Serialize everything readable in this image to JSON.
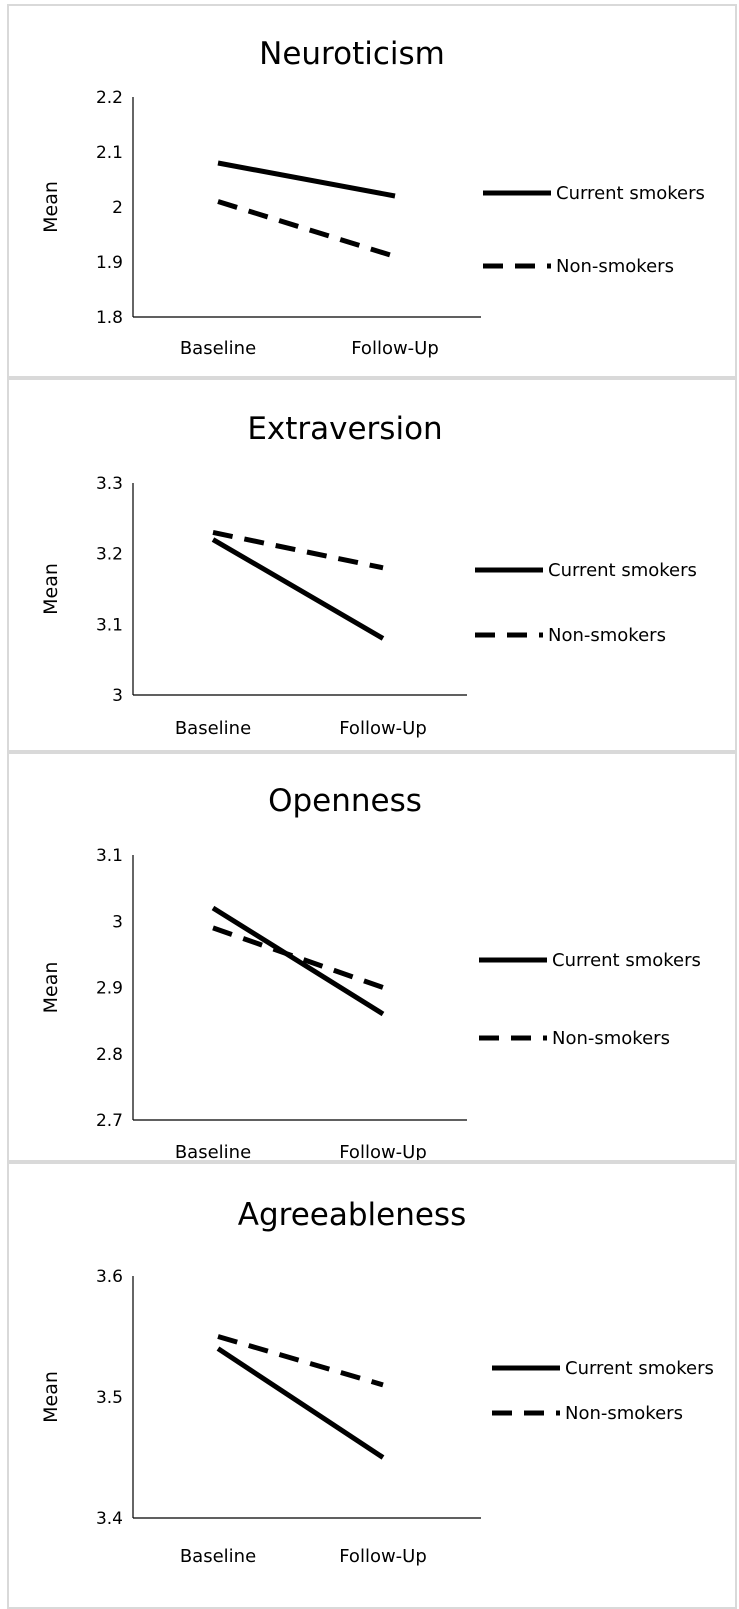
{
  "chart_data": [
    {
      "type": "line",
      "title": "Neuroticism",
      "ylabel": "Mean",
      "categories": [
        "Baseline",
        "Follow-Up"
      ],
      "ylim": [
        1.8,
        2.2
      ],
      "yticks": [
        "1.8",
        "1.9",
        "2",
        "2.1",
        "2.2"
      ],
      "series": [
        {
          "name": "Current smokers",
          "style": "solid",
          "values": [
            2.08,
            2.02
          ]
        },
        {
          "name": "Non-smokers",
          "style": "dashed",
          "values": [
            2.01,
            1.91
          ]
        }
      ],
      "legend_position": "right",
      "grid": false
    },
    {
      "type": "line",
      "title": "Extraversion",
      "ylabel": "Mean",
      "categories": [
        "Baseline",
        "Follow-Up"
      ],
      "ylim": [
        3.0,
        3.3
      ],
      "yticks": [
        "3",
        "3.1",
        "3.2",
        "3.3"
      ],
      "series": [
        {
          "name": "Current smokers",
          "style": "solid",
          "values": [
            3.22,
            3.08
          ]
        },
        {
          "name": "Non-smokers",
          "style": "dashed",
          "values": [
            3.23,
            3.18
          ]
        }
      ],
      "legend_position": "right",
      "grid": false
    },
    {
      "type": "line",
      "title": "Openness",
      "ylabel": "Mean",
      "categories": [
        "Baseline",
        "Follow-Up"
      ],
      "ylim": [
        2.7,
        3.1
      ],
      "yticks": [
        "2.7",
        "2.8",
        "2.9",
        "3",
        "3.1"
      ],
      "series": [
        {
          "name": "Current smokers",
          "style": "solid",
          "values": [
            3.02,
            2.86
          ]
        },
        {
          "name": "Non-smokers",
          "style": "dashed",
          "values": [
            2.99,
            2.9
          ]
        }
      ],
      "legend_position": "right",
      "grid": false
    },
    {
      "type": "line",
      "title": "Agreeableness",
      "ylabel": "Mean",
      "categories": [
        "Baseline",
        "Follow-Up"
      ],
      "ylim": [
        3.4,
        3.6
      ],
      "yticks": [
        "3.4",
        "3.5",
        "3.6"
      ],
      "series": [
        {
          "name": "Current smokers",
          "style": "solid",
          "values": [
            3.54,
            3.45
          ]
        },
        {
          "name": "Non-smokers",
          "style": "dashed",
          "values": [
            3.55,
            3.51
          ]
        }
      ],
      "legend_position": "right",
      "grid": false
    }
  ]
}
